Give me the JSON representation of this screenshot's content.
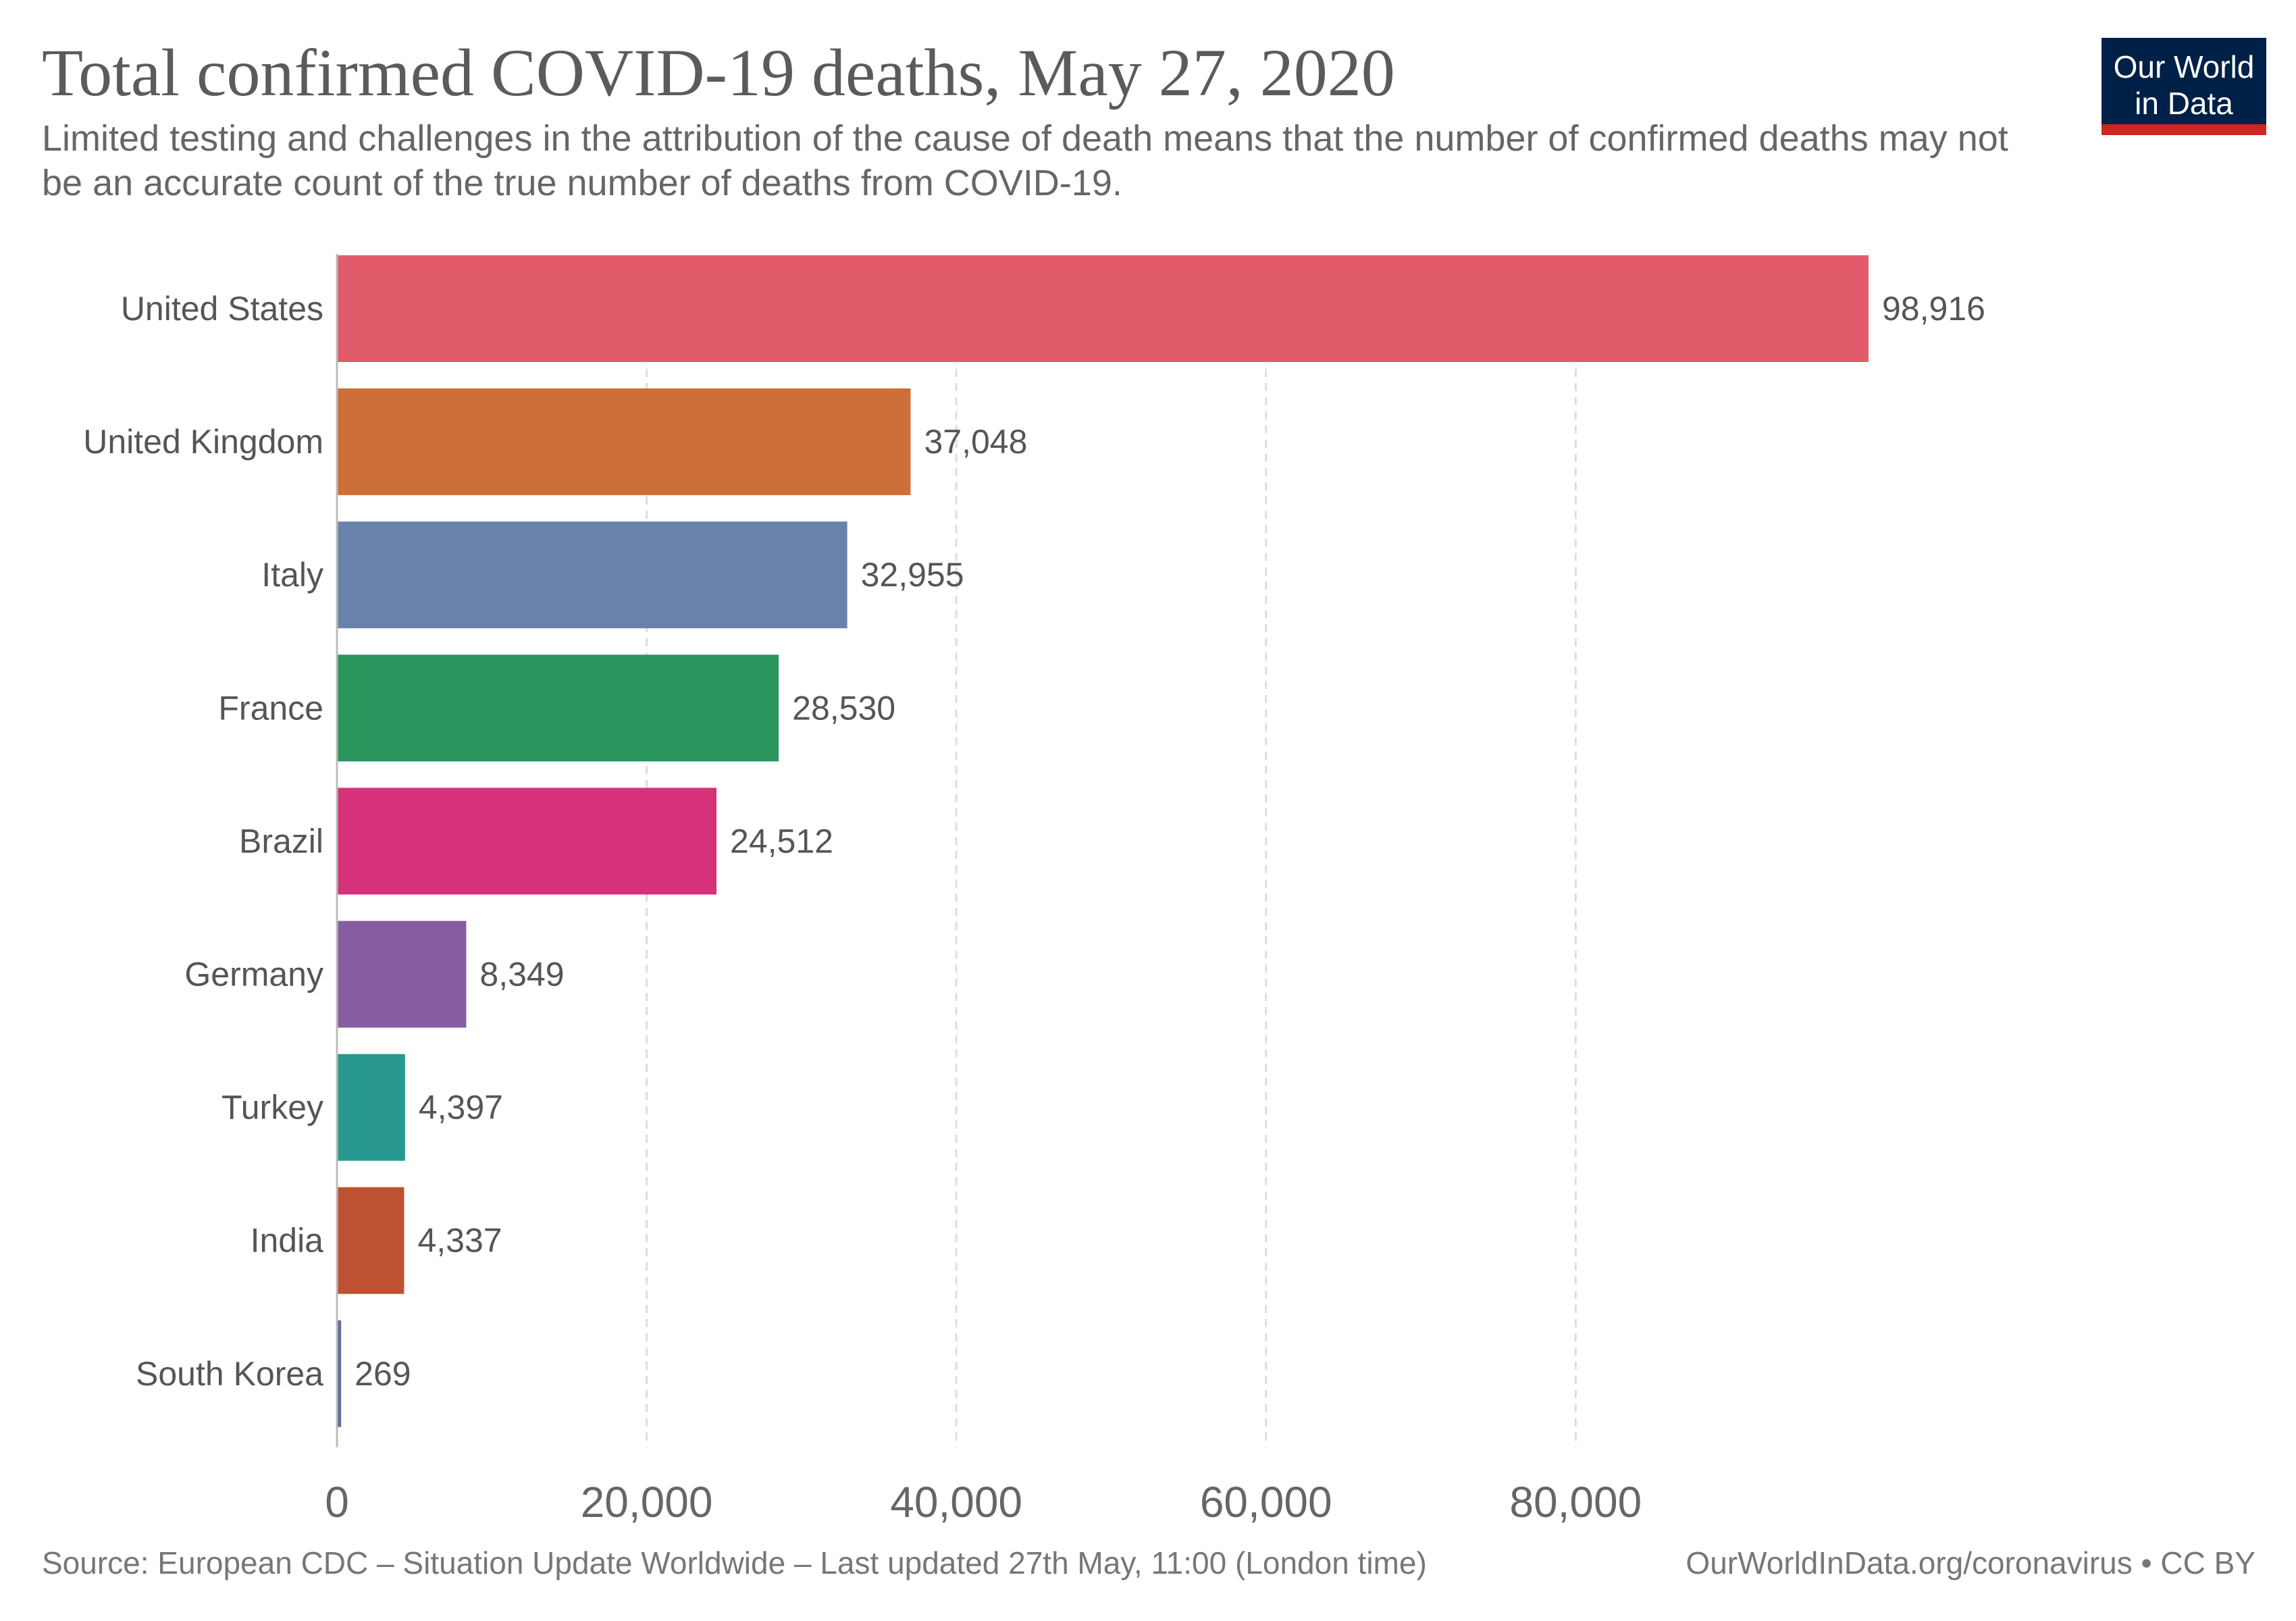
{
  "header": {
    "title": "Total confirmed COVID-19 deaths, May 27, 2020",
    "subtitle": "Limited testing and challenges in the attribution of the cause of death means that the number of confirmed deaths may not be an accurate count of the true number of deaths from COVID-19.",
    "logo_line1": "Our World",
    "logo_line2": "in Data"
  },
  "footer": {
    "source": "Source: European CDC – Situation Update Worldwide – Last updated 27th May, 11:00 (London time)",
    "attribution": "OurWorldInData.org/coronavirus • CC BY"
  },
  "colors": {
    "logo_background": "#002147",
    "logo_accent": "#ce261e"
  },
  "chart_data": {
    "type": "bar",
    "orientation": "horizontal",
    "title": "Total confirmed COVID-19 deaths, May 27, 2020",
    "categories": [
      "United States",
      "United Kingdom",
      "Italy",
      "France",
      "Brazil",
      "Germany",
      "Turkey",
      "India",
      "South Korea"
    ],
    "values": [
      98916,
      37048,
      32955,
      28530,
      24512,
      8349,
      4397,
      4337,
      269
    ],
    "value_labels": [
      "98,916",
      "37,048",
      "32,955",
      "28,530",
      "24,512",
      "8,349",
      "4,397",
      "4,337",
      "269"
    ],
    "colors": [
      "#e15b6b",
      "#cc6f39",
      "#6882ab",
      "#2a955d",
      "#d6327b",
      "#865da1",
      "#29998f",
      "#be5131",
      "#5e6f8f"
    ],
    "xlim": [
      0,
      98916
    ],
    "x_ticks": [
      0,
      20000,
      40000,
      60000,
      80000
    ],
    "x_tick_labels": [
      "0",
      "20,000",
      "40,000",
      "60,000",
      "80,000"
    ],
    "xlabel": "",
    "ylabel": "",
    "grid": true,
    "legend": "none"
  }
}
